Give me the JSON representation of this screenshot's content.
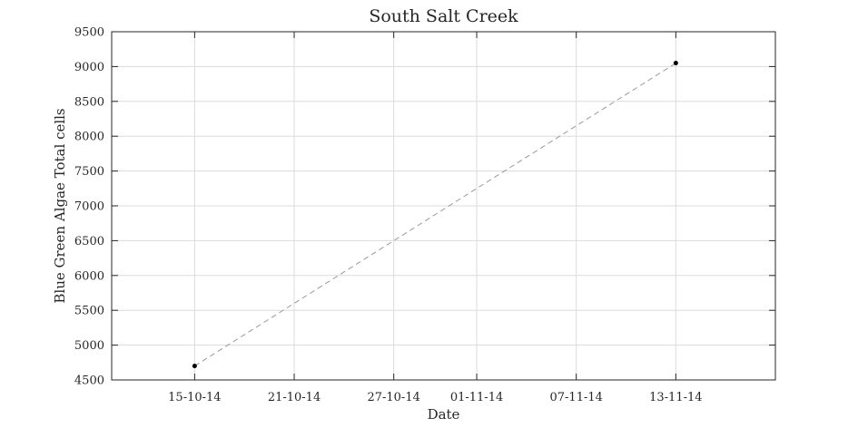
{
  "chart_data": {
    "type": "line",
    "title": "South Salt Creek",
    "xlabel": "Date",
    "ylabel": "Blue Green Algae Total cells",
    "x_tick_labels": [
      "15-10-14",
      "21-10-14",
      "27-10-14",
      "01-11-14",
      "07-11-14",
      "13-11-14"
    ],
    "x_ticks": [
      "2014-10-15",
      "2014-10-21",
      "2014-10-27",
      "2014-11-01",
      "2014-11-07",
      "2014-11-13"
    ],
    "xlim": [
      "2014-10-10",
      "2014-11-19"
    ],
    "ylim": [
      4500,
      9500
    ],
    "y_ticks": [
      4500,
      5000,
      5500,
      6000,
      6500,
      7000,
      7500,
      8000,
      8500,
      9000,
      9500
    ],
    "grid": true,
    "series": [
      {
        "x": [
          "2014-10-15",
          "2014-11-13"
        ],
        "y": [
          4700,
          9050
        ],
        "color": "#000000",
        "line_color": "#999999",
        "line_style": "dashed",
        "marker": "dot"
      }
    ]
  }
}
